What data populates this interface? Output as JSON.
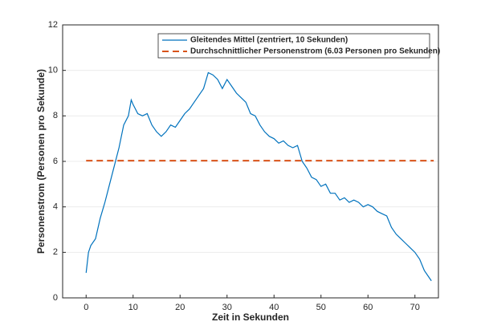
{
  "chart_data": {
    "type": "line",
    "xlabel": "Zeit in Sekunden",
    "ylabel": "Personenstrom (Personen pro Sekunde)",
    "xlim": [
      -5,
      75
    ],
    "xticks": [
      0,
      10,
      20,
      30,
      40,
      50,
      60,
      70
    ],
    "ylim": [
      0,
      12
    ],
    "yticks": [
      0,
      2,
      4,
      6,
      8,
      10,
      12
    ],
    "grid": "y",
    "legend": "north east",
    "series": [
      {
        "name": "Gleitendes Mittel (zentriert, 10 Sekunden)",
        "color": "#0072bd",
        "style": "solid",
        "x": [
          0,
          0.5,
          1,
          2,
          3,
          4,
          5,
          6,
          7,
          8,
          9,
          9.6,
          10,
          11,
          12,
          13,
          14,
          15,
          16,
          17,
          18,
          19,
          20,
          21,
          22,
          23,
          24,
          25,
          26,
          27,
          28,
          29,
          30,
          31,
          32,
          33,
          34,
          35,
          36,
          37,
          38,
          39,
          40,
          41,
          42,
          43,
          44,
          45,
          46,
          47,
          48,
          49,
          50,
          51,
          52,
          53,
          54,
          55,
          56,
          57,
          58,
          59,
          60,
          61,
          62,
          63,
          64,
          65,
          66,
          67,
          68,
          69,
          70,
          71,
          72,
          73,
          73.5
        ],
        "values": [
          1.1,
          2.0,
          2.3,
          2.6,
          3.5,
          4.2,
          5.0,
          5.8,
          6.6,
          7.6,
          8.0,
          8.7,
          8.5,
          8.1,
          8.0,
          8.1,
          7.6,
          7.3,
          7.1,
          7.3,
          7.6,
          7.5,
          7.8,
          8.1,
          8.3,
          8.6,
          8.9,
          9.2,
          9.9,
          9.8,
          9.6,
          9.2,
          9.6,
          9.3,
          9.0,
          8.8,
          8.6,
          8.1,
          8.0,
          7.6,
          7.3,
          7.1,
          7.0,
          6.8,
          6.9,
          6.7,
          6.6,
          6.7,
          6.0,
          5.7,
          5.3,
          5.2,
          4.9,
          5.0,
          4.6,
          4.6,
          4.3,
          4.4,
          4.2,
          4.3,
          4.2,
          4.0,
          4.1,
          4.0,
          3.8,
          3.7,
          3.6,
          3.1,
          2.8,
          2.6,
          2.4,
          2.2,
          2.0,
          1.7,
          1.2,
          0.9,
          0.75
        ]
      },
      {
        "name": "Durchschnittlicher Personenstrom (6.03 Personen pro Sekunden)",
        "color": "#d95319",
        "style": "dashed",
        "x": [
          0,
          74
        ],
        "values": [
          6.03,
          6.03
        ]
      }
    ]
  }
}
